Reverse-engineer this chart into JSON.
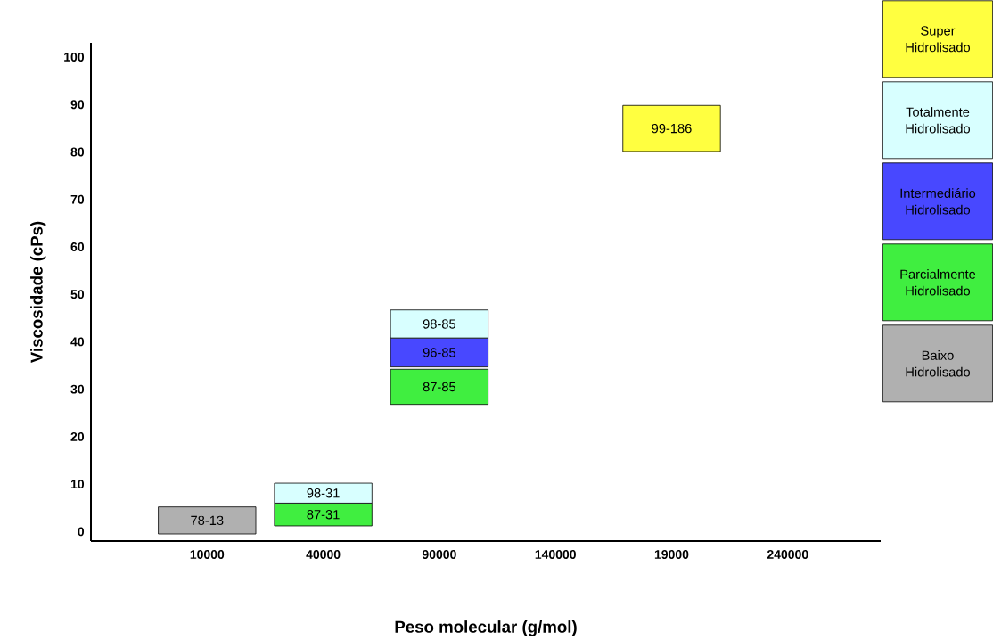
{
  "chart_data": {
    "type": "bar",
    "xlabel": "Peso molecular (g/mol)",
    "ylabel": "Viscosidade (cPs)",
    "categories": [
      "10000",
      "40000",
      "90000",
      "140000",
      "19000",
      "240000"
    ],
    "series": [
      {
        "name": "Baixo Hidrolisado",
        "color": "#b0b0b0",
        "base": [
          -0.5,
          null,
          null,
          null,
          null,
          null
        ],
        "values": [
          5.7,
          null,
          null,
          null,
          null,
          null
        ],
        "value_labels": [
          "78-13",
          null,
          null,
          null,
          null,
          null
        ]
      },
      {
        "name": "Parcialmente Hidrolisado",
        "color": "#40ee40",
        "base": [
          null,
          1.2,
          26.8,
          null,
          null,
          null
        ],
        "values": [
          null,
          4.8,
          7.4,
          null,
          null,
          null
        ],
        "value_labels": [
          null,
          "87-31",
          "87-85",
          null,
          null,
          null
        ]
      },
      {
        "name": "Intermediário Hidrolisado",
        "color": "#4848ff",
        "base": [
          null,
          null,
          34.7,
          null,
          null,
          null
        ],
        "values": [
          null,
          null,
          6.1,
          null,
          null,
          null
        ],
        "value_labels": [
          null,
          null,
          "96-85",
          null,
          null,
          null
        ]
      },
      {
        "name": "Totalmente Hidrolisado",
        "color": "#d8ffff",
        "base": [
          null,
          6.0,
          40.8,
          null,
          null,
          null
        ],
        "values": [
          null,
          4.2,
          5.9,
          null,
          null,
          null
        ],
        "value_labels": [
          null,
          "98-31",
          "98-85",
          null,
          null,
          null
        ]
      },
      {
        "name": "Super Hidrolisado",
        "color": "#ffff40",
        "base": [
          null,
          null,
          null,
          null,
          80.1,
          null
        ],
        "values": [
          null,
          null,
          null,
          null,
          9.7,
          null
        ],
        "value_labels": [
          null,
          null,
          null,
          null,
          "99-186",
          null
        ]
      }
    ],
    "ylim": [
      -2,
      103
    ],
    "yticks": [
      0,
      10,
      20,
      30,
      40,
      50,
      60,
      70,
      80,
      90,
      100
    ],
    "grid": false,
    "legend": "right"
  }
}
